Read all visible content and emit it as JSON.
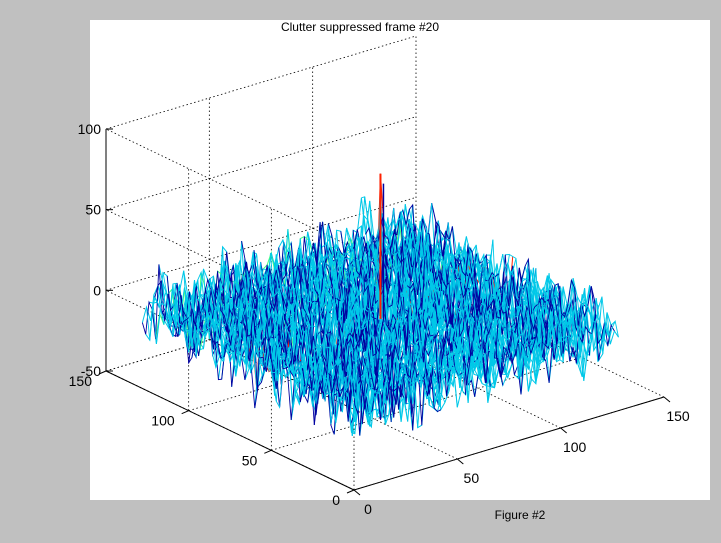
{
  "chart_data": {
    "type": "surface",
    "title": "Clutter suppressed frame #20",
    "caption": "Figure #2",
    "xlabel": "",
    "ylabel": "",
    "zlabel": "",
    "xlim": [
      0,
      150
    ],
    "ylim": [
      0,
      150
    ],
    "zlim": [
      -50,
      100
    ],
    "x_ticks": [
      "0",
      "50",
      "100",
      "150"
    ],
    "y_ticks": [
      "0",
      "50",
      "100",
      "150"
    ],
    "z_ticks": [
      "-50",
      "0",
      "50",
      "100"
    ],
    "grid": true,
    "colormap": "jet",
    "surface": {
      "x_range": [
        0,
        128
      ],
      "y_range": [
        0,
        128
      ],
      "noise_mean": 0,
      "noise_range": [
        -35,
        35
      ],
      "peak": {
        "x": 64,
        "y": 64,
        "z": 90
      }
    },
    "colors": {
      "background": "#c0c0c0",
      "axes_face": "#ffffff",
      "low": "#0000a0",
      "mid": "#00c8e8",
      "high": "#40ff80",
      "peak": "#ff2000"
    }
  }
}
